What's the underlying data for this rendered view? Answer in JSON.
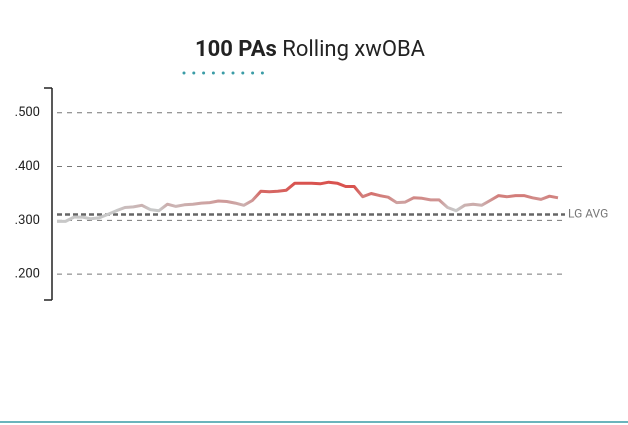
{
  "chart_data": {
    "type": "line",
    "title_bold": "100 PAs",
    "title": "Rolling xwOBA",
    "values": [
      0.298,
      0.298,
      0.306,
      0.306,
      0.303,
      0.305,
      0.311,
      0.318,
      0.324,
      0.325,
      0.328,
      0.32,
      0.318,
      0.33,
      0.326,
      0.329,
      0.33,
      0.332,
      0.333,
      0.336,
      0.335,
      0.332,
      0.328,
      0.337,
      0.354,
      0.353,
      0.354,
      0.356,
      0.369,
      0.369,
      0.369,
      0.368,
      0.371,
      0.369,
      0.363,
      0.363,
      0.344,
      0.35,
      0.346,
      0.343,
      0.333,
      0.334,
      0.342,
      0.341,
      0.338,
      0.338,
      0.324,
      0.318,
      0.328,
      0.33,
      0.328,
      0.337,
      0.346,
      0.344,
      0.346,
      0.346,
      0.342,
      0.339,
      0.345,
      0.342
    ],
    "color_domain": [
      0.32,
      0.36
    ],
    "colors": [
      "#c8c8c8",
      "#d9534f"
    ],
    "ylim": [
      0.152,
      0.546
    ],
    "yticks": [
      {
        "value": 0.5,
        "label": ".500"
      },
      {
        "value": 0.4,
        "label": ".400"
      },
      {
        "value": 0.3,
        "label": ".300"
      },
      {
        "value": 0.2,
        "label": ".200"
      }
    ],
    "grid": true,
    "reference_line": {
      "value": 0.311,
      "label": "LG AVG"
    }
  }
}
